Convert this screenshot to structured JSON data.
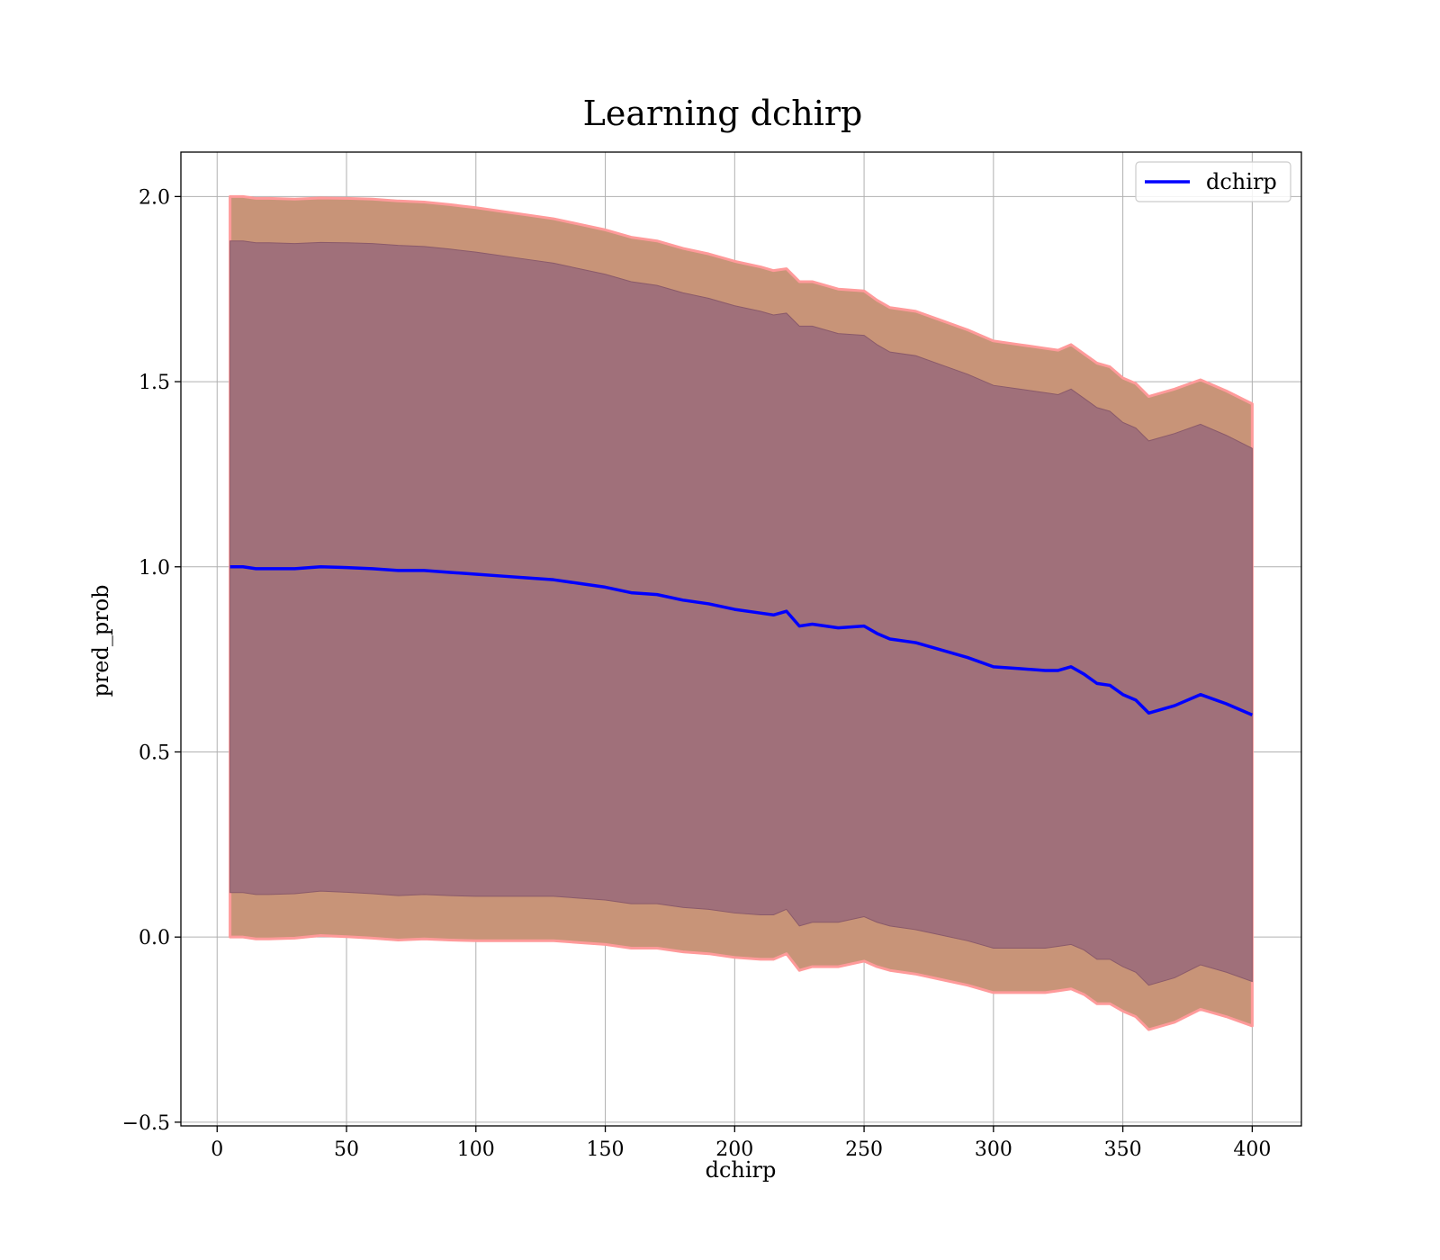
{
  "chart_data": {
    "type": "line",
    "title": "Learning dchirp",
    "xlabel": "dchirp",
    "ylabel": "pred_prob",
    "xlim": [
      -14,
      419
    ],
    "ylim": [
      -0.51,
      2.12
    ],
    "xticks": [
      0,
      50,
      100,
      150,
      200,
      250,
      300,
      350,
      400
    ],
    "yticks": [
      -0.5,
      0.0,
      0.5,
      1.0,
      1.5,
      2.0
    ],
    "xtick_labels": [
      "0",
      "50",
      "100",
      "150",
      "200",
      "250",
      "300",
      "350",
      "400"
    ],
    "ytick_labels": [
      "−0.5",
      "0.0",
      "0.5",
      "1.0",
      "1.5",
      "2.0"
    ],
    "grid": true,
    "legend": {
      "placement": "upper right",
      "entries": [
        "dchirp"
      ]
    },
    "colors": {
      "line": "#0000ff",
      "outer_band": "#c89478",
      "outer_band_edge": "#ff9a9a",
      "inner_band": "#a0707a",
      "grid": "#b0b0b0"
    },
    "series": [
      {
        "name": "dchirp",
        "x": [
          5,
          10,
          15,
          20,
          30,
          40,
          50,
          60,
          70,
          80,
          90,
          100,
          110,
          120,
          130,
          140,
          150,
          160,
          170,
          180,
          190,
          200,
          210,
          215,
          220,
          225,
          230,
          240,
          250,
          255,
          260,
          270,
          280,
          290,
          300,
          310,
          320,
          325,
          330,
          335,
          340,
          345,
          350,
          355,
          360,
          370,
          380,
          390,
          400
        ],
        "y": [
          1.0,
          1.0,
          0.995,
          0.995,
          0.995,
          1.0,
          0.998,
          0.995,
          0.99,
          0.99,
          0.985,
          0.98,
          0.975,
          0.97,
          0.965,
          0.955,
          0.945,
          0.93,
          0.925,
          0.91,
          0.9,
          0.885,
          0.875,
          0.87,
          0.88,
          0.84,
          0.845,
          0.835,
          0.84,
          0.82,
          0.805,
          0.795,
          0.775,
          0.755,
          0.73,
          0.725,
          0.72,
          0.72,
          0.73,
          0.71,
          0.685,
          0.68,
          0.655,
          0.64,
          0.605,
          0.625,
          0.655,
          0.63,
          0.6
        ]
      }
    ],
    "outer_band": {
      "upper": [
        2.0,
        2.0,
        1.995,
        1.995,
        1.993,
        1.996,
        1.995,
        1.993,
        1.988,
        1.985,
        1.978,
        1.97,
        1.96,
        1.95,
        1.94,
        1.925,
        1.91,
        1.89,
        1.88,
        1.86,
        1.845,
        1.825,
        1.81,
        1.8,
        1.805,
        1.77,
        1.77,
        1.75,
        1.745,
        1.72,
        1.7,
        1.69,
        1.665,
        1.64,
        1.61,
        1.6,
        1.59,
        1.585,
        1.6,
        1.575,
        1.55,
        1.54,
        1.51,
        1.495,
        1.46,
        1.48,
        1.505,
        1.475,
        1.44
      ],
      "lower": [
        0.0,
        0.0,
        -0.005,
        -0.005,
        -0.003,
        0.004,
        0.001,
        -0.003,
        -0.008,
        -0.005,
        -0.008,
        -0.01,
        -0.01,
        -0.01,
        -0.01,
        -0.015,
        -0.02,
        -0.03,
        -0.03,
        -0.04,
        -0.045,
        -0.055,
        -0.06,
        -0.06,
        -0.045,
        -0.09,
        -0.08,
        -0.08,
        -0.065,
        -0.08,
        -0.09,
        -0.1,
        -0.115,
        -0.13,
        -0.15,
        -0.15,
        -0.15,
        -0.145,
        -0.14,
        -0.155,
        -0.18,
        -0.18,
        -0.2,
        -0.215,
        -0.25,
        -0.23,
        -0.195,
        -0.215,
        -0.24
      ]
    },
    "inner_band": {
      "upper": [
        1.88,
        1.88,
        1.875,
        1.875,
        1.873,
        1.876,
        1.875,
        1.873,
        1.868,
        1.865,
        1.858,
        1.85,
        1.84,
        1.83,
        1.82,
        1.805,
        1.79,
        1.77,
        1.76,
        1.74,
        1.725,
        1.705,
        1.69,
        1.68,
        1.685,
        1.65,
        1.65,
        1.63,
        1.625,
        1.6,
        1.58,
        1.57,
        1.545,
        1.52,
        1.49,
        1.48,
        1.47,
        1.465,
        1.48,
        1.455,
        1.43,
        1.42,
        1.39,
        1.375,
        1.34,
        1.36,
        1.385,
        1.355,
        1.32
      ],
      "lower": [
        0.12,
        0.12,
        0.115,
        0.115,
        0.117,
        0.124,
        0.121,
        0.117,
        0.112,
        0.115,
        0.112,
        0.11,
        0.11,
        0.11,
        0.11,
        0.105,
        0.1,
        0.09,
        0.09,
        0.08,
        0.075,
        0.065,
        0.06,
        0.06,
        0.075,
        0.03,
        0.04,
        0.04,
        0.055,
        0.04,
        0.03,
        0.02,
        0.005,
        -0.01,
        -0.03,
        -0.03,
        -0.03,
        -0.025,
        -0.02,
        -0.035,
        -0.06,
        -0.06,
        -0.08,
        -0.095,
        -0.13,
        -0.11,
        -0.075,
        -0.095,
        -0.12
      ]
    }
  }
}
